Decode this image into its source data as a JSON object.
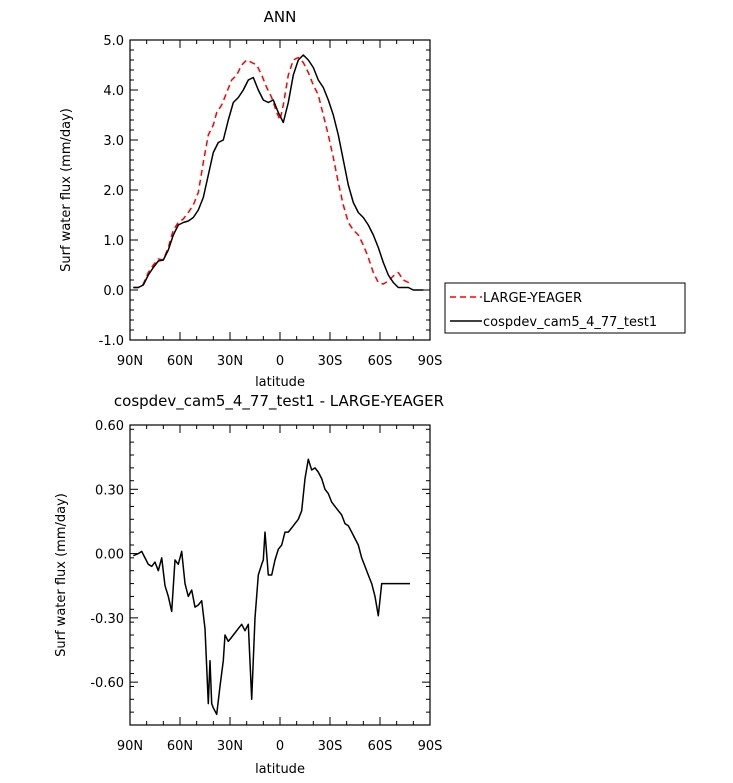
{
  "chart_data": [
    {
      "type": "line",
      "title": "ANN",
      "xlabel": "latitude",
      "ylabel": "Surf water flux (mm/day)",
      "xlim": [
        90,
        -90
      ],
      "ylim": [
        -1.0,
        5.0
      ],
      "y_tick_labels": [
        "-1.0",
        "0.0",
        "1.0",
        "2.0",
        "3.0",
        "4.0",
        "5.0"
      ],
      "y_tick_values": [
        -1.0,
        0.0,
        1.0,
        2.0,
        3.0,
        4.0,
        5.0
      ],
      "x_tick_labels": [
        "90N",
        "60N",
        "30N",
        "0",
        "30S",
        "60S",
        "90S"
      ],
      "x_tick_values": [
        90,
        60,
        30,
        0,
        -30,
        -60,
        -90
      ],
      "legend_position": "right",
      "series": [
        {
          "name": "LARGE-YEAGER",
          "color": "#ff0000",
          "dash": "dashed",
          "x": [
            88,
            85,
            82,
            79,
            76,
            73,
            70,
            67,
            64,
            61,
            58,
            55,
            52,
            49,
            46,
            43,
            40,
            38,
            35,
            32,
            29,
            26,
            23,
            20,
            17,
            14,
            11,
            8,
            5,
            2,
            0,
            -2,
            -5,
            -8,
            -11,
            -14,
            -17,
            -20,
            -23,
            -26,
            -29,
            -32,
            -35,
            -38,
            -41,
            -44,
            -47,
            -50,
            -53,
            -56,
            -59,
            -62,
            -65,
            -68,
            -71,
            -74,
            -77,
            -78
          ],
          "y": [
            0.05,
            0.05,
            0.12,
            0.35,
            0.5,
            0.62,
            0.6,
            0.85,
            1.2,
            1.35,
            1.42,
            1.55,
            1.7,
            1.95,
            2.55,
            3.1,
            3.3,
            3.55,
            3.7,
            3.95,
            4.2,
            4.3,
            4.5,
            4.6,
            4.55,
            4.5,
            4.3,
            4.05,
            3.85,
            3.55,
            3.4,
            3.7,
            4.3,
            4.6,
            4.65,
            4.55,
            4.35,
            4.1,
            3.9,
            3.5,
            3.1,
            2.65,
            2.15,
            1.7,
            1.35,
            1.2,
            1.1,
            0.9,
            0.65,
            0.35,
            0.15,
            0.12,
            0.18,
            0.28,
            0.35,
            0.2,
            0.15,
            0.15
          ]
        },
        {
          "name": "cospdev_cam5_4_77_test1",
          "color": "#000000",
          "dash": "solid",
          "x": [
            88,
            85,
            82,
            79,
            76,
            73,
            70,
            67,
            64,
            61,
            58,
            55,
            52,
            49,
            46,
            43,
            40,
            37,
            34,
            31,
            28,
            25,
            22,
            19,
            16,
            13,
            10,
            7,
            4,
            1,
            -2,
            -5,
            -8,
            -11,
            -14,
            -17,
            -20,
            -23,
            -26,
            -29,
            -32,
            -35,
            -38,
            -41,
            -44,
            -47,
            -50,
            -53,
            -56,
            -59,
            -62,
            -65,
            -68,
            -71,
            -74,
            -77,
            -80,
            -83,
            -86
          ],
          "y": [
            0.05,
            0.05,
            0.1,
            0.3,
            0.45,
            0.58,
            0.6,
            0.8,
            1.1,
            1.3,
            1.35,
            1.38,
            1.45,
            1.6,
            1.85,
            2.3,
            2.75,
            2.95,
            3.0,
            3.4,
            3.75,
            3.85,
            4.0,
            4.2,
            4.25,
            4.0,
            3.8,
            3.75,
            3.8,
            3.55,
            3.35,
            3.75,
            4.3,
            4.6,
            4.7,
            4.6,
            4.45,
            4.2,
            4.05,
            3.8,
            3.5,
            3.1,
            2.6,
            2.1,
            1.75,
            1.55,
            1.45,
            1.3,
            1.1,
            0.85,
            0.55,
            0.3,
            0.15,
            0.05,
            0.05,
            0.05,
            0.0,
            0.0,
            0.0
          ]
        }
      ]
    },
    {
      "type": "line",
      "title": "cospdev_cam5_4_77_test1 - LARGE-YEAGER",
      "xlabel": "latitude",
      "ylabel": "Surf water flux (mm/day)",
      "xlim": [
        90,
        -90
      ],
      "ylim": [
        -0.8,
        0.6
      ],
      "y_tick_labels": [
        "-0.60",
        "-0.30",
        "0.00",
        "0.30",
        "0.60"
      ],
      "y_tick_values": [
        -0.6,
        -0.3,
        0.0,
        0.3,
        0.6
      ],
      "x_tick_labels": [
        "90N",
        "60N",
        "30N",
        "0",
        "30S",
        "60S",
        "90S"
      ],
      "x_tick_values": [
        90,
        60,
        30,
        0,
        -30,
        -60,
        -90
      ],
      "series": [
        {
          "name": "",
          "color": "#000000",
          "dash": "solid",
          "x": [
            88,
            85,
            83,
            81,
            79,
            77,
            75,
            73,
            71,
            69,
            67,
            65,
            63,
            61,
            59,
            57,
            55,
            53,
            51,
            49,
            47,
            45,
            43,
            42,
            41,
            40,
            38,
            36,
            34,
            33,
            31,
            29,
            27,
            25,
            23,
            21,
            19,
            17,
            15,
            13,
            11,
            10,
            9,
            7,
            5,
            3,
            1,
            -1,
            -3,
            -5,
            -7,
            -9,
            -11,
            -13,
            -15,
            -17,
            -19,
            -21,
            -23,
            -25,
            -27,
            -29,
            -31,
            -33,
            -35,
            -37,
            -39,
            -41,
            -43,
            -45,
            -47,
            -49,
            -51,
            -53,
            -55,
            -57,
            -59,
            -61,
            -63,
            -65,
            -67,
            -69,
            -71,
            -73,
            -75,
            -77,
            -78
          ],
          "y": [
            -0.01,
            0.0,
            0.01,
            -0.02,
            -0.05,
            -0.06,
            -0.04,
            -0.08,
            -0.02,
            -0.15,
            -0.2,
            -0.27,
            -0.03,
            -0.05,
            0.01,
            -0.14,
            -0.2,
            -0.17,
            -0.25,
            -0.24,
            -0.22,
            -0.35,
            -0.7,
            -0.5,
            -0.7,
            -0.72,
            -0.75,
            -0.62,
            -0.5,
            -0.38,
            -0.41,
            -0.39,
            -0.37,
            -0.35,
            -0.33,
            -0.36,
            -0.33,
            -0.68,
            -0.3,
            -0.1,
            -0.05,
            -0.03,
            0.1,
            -0.1,
            -0.1,
            -0.03,
            0.02,
            0.04,
            0.1,
            0.1,
            0.12,
            0.14,
            0.16,
            0.2,
            0.35,
            0.44,
            0.39,
            0.4,
            0.38,
            0.35,
            0.3,
            0.28,
            0.24,
            0.22,
            0.2,
            0.18,
            0.14,
            0.13,
            0.1,
            0.07,
            0.04,
            -0.02,
            -0.06,
            -0.1,
            -0.14,
            -0.2,
            -0.29,
            -0.14,
            -0.14,
            -0.14,
            -0.14,
            -0.14,
            -0.14,
            -0.14,
            -0.14,
            -0.14,
            -0.14
          ]
        }
      ]
    }
  ]
}
